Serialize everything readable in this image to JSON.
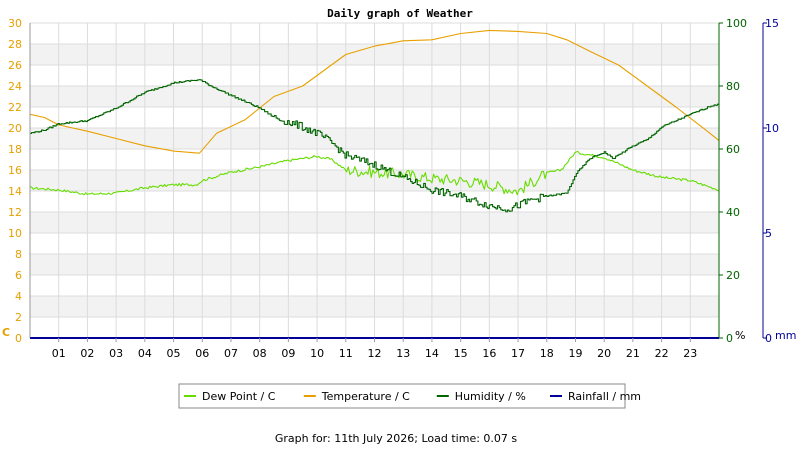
{
  "chart_data": {
    "type": "line",
    "title": "Daily graph of Weather",
    "footer": "Graph for: 11th July 2026; Load time: 0.07 s",
    "x_ticks": [
      "01",
      "02",
      "03",
      "04",
      "05",
      "06",
      "07",
      "08",
      "09",
      "10",
      "11",
      "12",
      "13",
      "14",
      "15",
      "16",
      "17",
      "18",
      "19",
      "20",
      "21",
      "22",
      "23"
    ],
    "x_range": [
      0,
      24
    ],
    "axes": {
      "left": {
        "unit": "C",
        "min": 0,
        "max": 30,
        "ticks": [
          0,
          2,
          4,
          6,
          8,
          10,
          12,
          14,
          16,
          18,
          20,
          22,
          24,
          26,
          28,
          30
        ],
        "color": "#e8a000"
      },
      "humidity": {
        "unit": "%",
        "min": 0,
        "max": 100,
        "ticks": [
          0,
          20,
          40,
          60,
          80,
          100
        ],
        "color": "#006400"
      },
      "rain": {
        "unit": "mm",
        "min": 0,
        "max": 15,
        "ticks": [
          0,
          5,
          10,
          15
        ],
        "color": "#000099"
      }
    },
    "grid": true,
    "series": [
      {
        "name": "Dew Point / C",
        "axis": "left",
        "color": "#66dd00",
        "noisy": true,
        "x": [
          0,
          1,
          2,
          3,
          4,
          5,
          5.8,
          6,
          7,
          8,
          9,
          10,
          10.5,
          11,
          12,
          13,
          14,
          15,
          16,
          17,
          18,
          18.5,
          19,
          20,
          21,
          22,
          23,
          24
        ],
        "y": [
          14.3,
          14.1,
          13.7,
          13.8,
          14.3,
          14.6,
          14.6,
          15.0,
          15.8,
          16.3,
          16.9,
          17.3,
          17.0,
          16.0,
          15.8,
          15.6,
          15.2,
          15.0,
          14.6,
          14.0,
          15.7,
          16.0,
          17.7,
          17.2,
          16.0,
          15.3,
          15.0,
          14.1
        ]
      },
      {
        "name": "Temperature / C",
        "axis": "left",
        "color": "#e8a000",
        "noisy": false,
        "x": [
          0,
          0.5,
          1,
          2,
          3,
          4,
          5,
          5.9,
          6.5,
          7.5,
          8.5,
          9.5,
          10.5,
          11,
          12,
          13,
          14,
          15,
          16,
          17,
          18,
          18.7,
          19.5,
          20.5,
          21.5,
          22.5,
          23.5,
          24
        ],
        "y": [
          21.3,
          21.0,
          20.3,
          19.7,
          19.0,
          18.3,
          17.8,
          17.6,
          19.5,
          20.8,
          23.0,
          24.0,
          26.0,
          27.0,
          27.8,
          28.3,
          28.4,
          29.0,
          29.3,
          29.2,
          29.0,
          28.4,
          27.3,
          26.0,
          24.0,
          22.0,
          19.9,
          18.8
        ]
      },
      {
        "name": "Humidity / %",
        "axis": "humidity",
        "color": "#006400",
        "noisy": true,
        "step": true,
        "x": [
          0,
          0.5,
          1,
          2,
          3,
          4,
          5,
          5.9,
          6.3,
          7,
          8,
          8.5,
          9.5,
          10,
          10.5,
          11,
          12,
          13,
          14,
          15,
          16,
          16.7,
          17.5,
          18,
          18.7,
          19,
          19.5,
          20,
          20.3,
          21,
          21.5,
          22,
          23,
          23.8,
          24
        ],
        "y": [
          65,
          66,
          68,
          69,
          73,
          78,
          81,
          82,
          80,
          77,
          73,
          70,
          67,
          65,
          62,
          58,
          55,
          51,
          47,
          45,
          42,
          41,
          44,
          45,
          46,
          52,
          57,
          59,
          57,
          61,
          63,
          67,
          71,
          74,
          74
        ]
      },
      {
        "name": "Rainfall / mm",
        "axis": "rain",
        "color": "#000099",
        "noisy": false,
        "x": [
          0,
          24
        ],
        "y": [
          0,
          0
        ]
      }
    ],
    "legend": {
      "placement": "bottom-center"
    }
  }
}
